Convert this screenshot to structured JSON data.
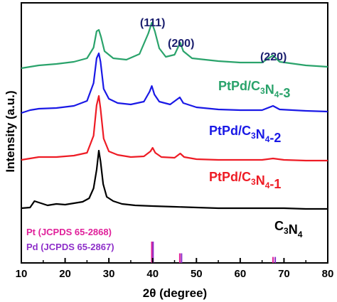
{
  "chart_data": {
    "type": "line",
    "xlabel": "2θ (degree)",
    "ylabel": "Intensity (a.u.)",
    "xlim": [
      10,
      80
    ],
    "x_ticks": [
      "10",
      "20",
      "30",
      "40",
      "50",
      "60",
      "70",
      "80"
    ],
    "grid": false,
    "series": [
      {
        "name": "C3N4",
        "label": {
          "base": "C",
          "sub1": "3",
          "mid": "N",
          "sub2": "4",
          "suffix": ""
        },
        "color": "#000000",
        "points": [
          [
            10,
            4
          ],
          [
            12,
            5
          ],
          [
            13,
            14
          ],
          [
            14,
            12
          ],
          [
            16,
            8
          ],
          [
            18,
            10
          ],
          [
            20,
            9
          ],
          [
            22,
            11
          ],
          [
            24,
            13
          ],
          [
            25.5,
            18
          ],
          [
            26.5,
            32
          ],
          [
            27.2,
            58
          ],
          [
            27.7,
            85
          ],
          [
            28.1,
            70
          ],
          [
            28.7,
            38
          ],
          [
            29.5,
            20
          ],
          [
            31,
            14
          ],
          [
            33,
            10
          ],
          [
            36,
            8
          ],
          [
            40,
            7
          ],
          [
            45,
            6
          ],
          [
            50,
            5
          ],
          [
            55,
            4
          ],
          [
            60,
            4
          ],
          [
            65,
            4
          ],
          [
            70,
            4
          ],
          [
            75,
            3
          ],
          [
            80,
            3
          ]
        ]
      },
      {
        "name": "PtPd/C3N4-1",
        "label": {
          "base": "PtPd/C",
          "sub1": "3",
          "mid": "N",
          "sub2": "4",
          "suffix": "-1"
        },
        "color": "#ee1c25",
        "points": [
          [
            10,
            8
          ],
          [
            12,
            10
          ],
          [
            14,
            12
          ],
          [
            18,
            12
          ],
          [
            22,
            14
          ],
          [
            25,
            18
          ],
          [
            26.5,
            42
          ],
          [
            27.2,
            85
          ],
          [
            27.7,
            98
          ],
          [
            28.1,
            80
          ],
          [
            28.8,
            38
          ],
          [
            30,
            20
          ],
          [
            32,
            15
          ],
          [
            35,
            12
          ],
          [
            38,
            13
          ],
          [
            39.5,
            20
          ],
          [
            40,
            25
          ],
          [
            40.6,
            18
          ],
          [
            42,
            12
          ],
          [
            45,
            11
          ],
          [
            46.3,
            17
          ],
          [
            47.2,
            12
          ],
          [
            50,
            9
          ],
          [
            55,
            8
          ],
          [
            60,
            8
          ],
          [
            65,
            8
          ],
          [
            67.5,
            10
          ],
          [
            70,
            8
          ],
          [
            75,
            7
          ],
          [
            80,
            7
          ]
        ]
      },
      {
        "name": "PtPd/C3N4-2",
        "label": {
          "base": "PtPd/C",
          "sub1": "3",
          "mid": "N",
          "sub2": "4",
          "suffix": "-2"
        },
        "color": "#1a19e6",
        "points": [
          [
            10,
            8
          ],
          [
            12,
            12
          ],
          [
            14,
            14
          ],
          [
            18,
            15
          ],
          [
            22,
            18
          ],
          [
            25,
            25
          ],
          [
            26.5,
            50
          ],
          [
            27.2,
            85
          ],
          [
            27.7,
            92
          ],
          [
            28.1,
            80
          ],
          [
            28.8,
            42
          ],
          [
            30,
            28
          ],
          [
            32,
            22
          ],
          [
            35,
            20
          ],
          [
            38,
            24
          ],
          [
            39.3,
            38
          ],
          [
            39.8,
            46
          ],
          [
            40.4,
            34
          ],
          [
            41.5,
            24
          ],
          [
            44,
            20
          ],
          [
            46.2,
            30
          ],
          [
            47,
            22
          ],
          [
            50,
            16
          ],
          [
            55,
            13
          ],
          [
            60,
            12
          ],
          [
            65,
            12
          ],
          [
            67.5,
            18
          ],
          [
            69,
            13
          ],
          [
            75,
            11
          ],
          [
            80,
            10
          ]
        ]
      },
      {
        "name": "PtPd/C3N4-3",
        "label": {
          "base": "PtPd/C",
          "sub1": "3",
          "mid": "N",
          "sub2": "4",
          "suffix": "-3"
        },
        "color": "#2aa36b",
        "points": [
          [
            10,
            6
          ],
          [
            12,
            8
          ],
          [
            14,
            10
          ],
          [
            18,
            12
          ],
          [
            22,
            15
          ],
          [
            25,
            20
          ],
          [
            26.5,
            35
          ],
          [
            27.2,
            58
          ],
          [
            27.7,
            60
          ],
          [
            28.2,
            50
          ],
          [
            29,
            30
          ],
          [
            31,
            20
          ],
          [
            34,
            18
          ],
          [
            37,
            26
          ],
          [
            39,
            55
          ],
          [
            39.8,
            70
          ],
          [
            40.5,
            58
          ],
          [
            41.5,
            34
          ],
          [
            43,
            22
          ],
          [
            45,
            25
          ],
          [
            46.3,
            42
          ],
          [
            47,
            30
          ],
          [
            49,
            20
          ],
          [
            55,
            16
          ],
          [
            60,
            14
          ],
          [
            65,
            14
          ],
          [
            67.5,
            24
          ],
          [
            69,
            15
          ],
          [
            75,
            10
          ],
          [
            80,
            8
          ]
        ]
      }
    ],
    "peak_labels": [
      {
        "text": "(111)",
        "x": 40
      },
      {
        "text": "(200)",
        "x": 46.5
      },
      {
        "text": "(220)",
        "x": 67.6
      }
    ],
    "reference_patterns": [
      {
        "name": "Pt",
        "label": "Pt  (JCPDS 65-2868)",
        "color": "#e0209a",
        "peaks": [
          [
            39.8,
            1.0
          ],
          [
            46.2,
            0.45
          ],
          [
            67.5,
            0.28
          ]
        ]
      },
      {
        "name": "Pd",
        "label": "Pd (JCPDS 65-2867)",
        "color": "#8e2fc9",
        "peaks": [
          [
            40.1,
            1.0
          ],
          [
            46.6,
            0.45
          ],
          [
            68.0,
            0.28
          ]
        ]
      }
    ]
  }
}
